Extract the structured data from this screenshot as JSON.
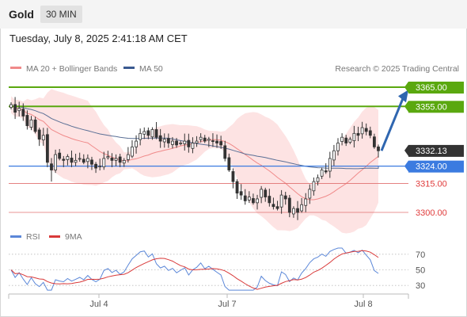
{
  "header": {
    "instrument": "Gold",
    "timeframe": "30 MIN"
  },
  "datetime": "Tuesday, July 8, 2025 2:41:18 AM CET",
  "legend": {
    "ma20_bb": "MA 20 + Bollinger Bands",
    "ma50": "MA 50",
    "credit": "Research © 2025 Trading Central"
  },
  "rsi_legend": {
    "rsi": "RSI",
    "ma": "9MA"
  },
  "colors": {
    "resistance": "#5aa80f",
    "support": "#3b7be0",
    "level_red": "#e07070",
    "current": "#333333",
    "arrow": "#2f66b0",
    "bb_fill": "#fde1e1",
    "ma20": "#f08a8a",
    "ma50": "#5a6f95",
    "candle": "#333333",
    "rsi": "#5b87d8",
    "rsi_ma": "#d93a3a"
  },
  "chart_data": {
    "type": "candlestick",
    "x_ticks": [
      "Jul 4",
      "Jul 7",
      "Jul 8"
    ],
    "ylim": [
      3294,
      3372
    ],
    "levels": [
      {
        "value": 3365.0,
        "label": "3365.00",
        "kind": "resistance"
      },
      {
        "value": 3355.0,
        "label": "3355.00",
        "kind": "resistance"
      },
      {
        "value": 3332.13,
        "label": "3332.13",
        "kind": "current"
      },
      {
        "value": 3324.0,
        "label": "3324.00",
        "kind": "support"
      },
      {
        "value": 3315.0,
        "label": "3315.00",
        "kind": "minor"
      },
      {
        "value": 3300.0,
        "label": "3300.00",
        "kind": "minor"
      }
    ],
    "forecast_arrow": {
      "from": 3332,
      "to": 3362
    },
    "closes": [
      3356,
      3352,
      3354,
      3350,
      3345,
      3348,
      3342,
      3338,
      3340,
      3326,
      3322,
      3330,
      3328,
      3327,
      3329,
      3326,
      3327,
      3328,
      3326,
      3328,
      3325,
      3323,
      3324,
      3328,
      3329,
      3327,
      3328,
      3326,
      3327,
      3330,
      3334,
      3337,
      3341,
      3342,
      3340,
      3343,
      3339,
      3337,
      3338,
      3336,
      3337,
      3335,
      3336,
      3337,
      3334,
      3336,
      3337,
      3339,
      3337,
      3338,
      3337,
      3336,
      3335,
      3328,
      3322,
      3316,
      3310,
      3309,
      3306,
      3308,
      3305,
      3307,
      3312,
      3308,
      3305,
      3303,
      3302,
      3309,
      3307,
      3300,
      3302,
      3300,
      3304,
      3307,
      3312,
      3316,
      3318,
      3322,
      3321,
      3328,
      3332,
      3336,
      3339,
      3336,
      3338,
      3341,
      3340,
      3344,
      3342,
      3340,
      3334,
      3332
    ],
    "rsi": {
      "levels": [
        70,
        50,
        30
      ],
      "ylim": [
        20,
        80
      ]
    }
  }
}
